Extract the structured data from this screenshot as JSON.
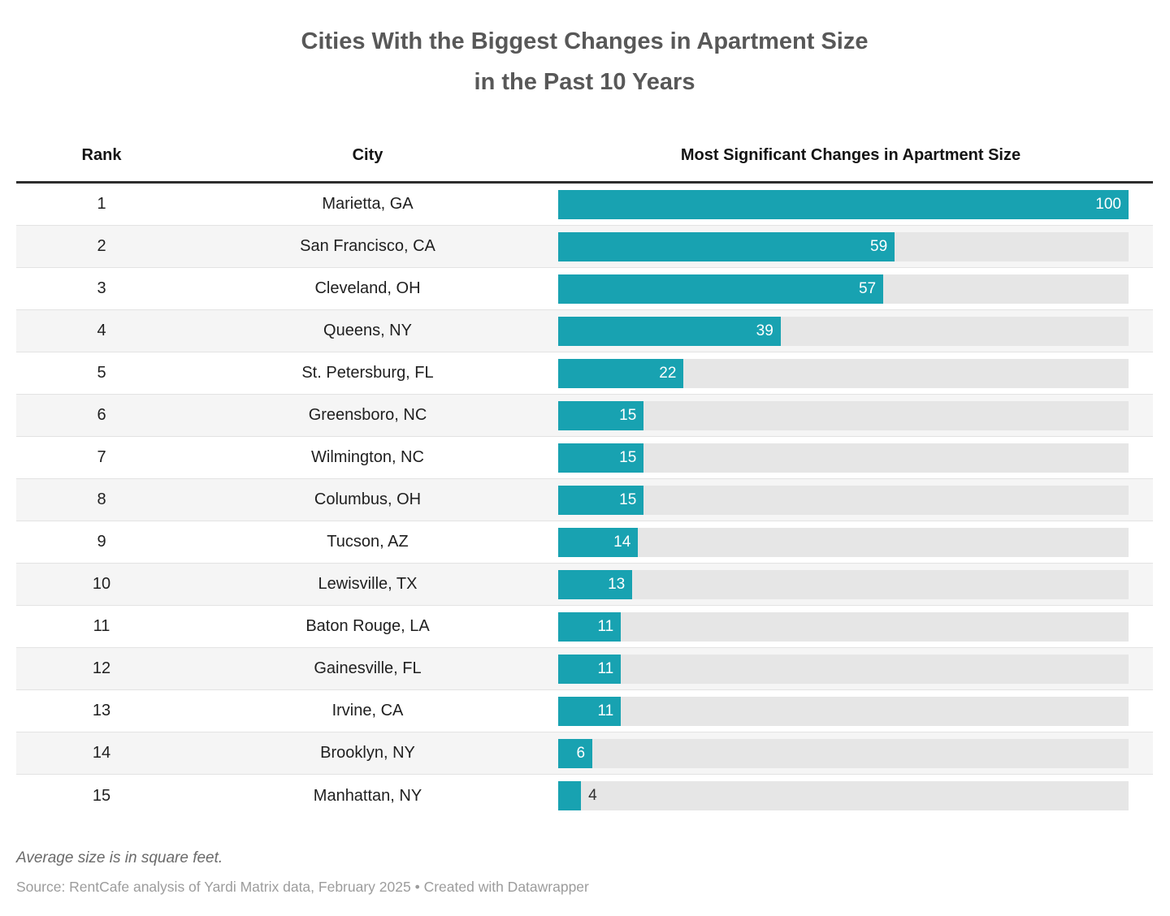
{
  "title": {
    "line1": "Cities With the Biggest Changes in Apartment Size",
    "line2": "in the Past 10 Years"
  },
  "chart_data": {
    "type": "bar",
    "orientation": "horizontal",
    "title": "Cities With the Biggest Changes in Apartment Size in the Past 10 Years",
    "column_headers": [
      "Rank",
      "City",
      "Most Significant Changes in Apartment Size"
    ],
    "ranks": [
      1,
      2,
      3,
      4,
      5,
      6,
      7,
      8,
      9,
      10,
      11,
      12,
      13,
      14,
      15
    ],
    "categories": [
      "Marietta, GA",
      "San Francisco, CA",
      "Cleveland, OH",
      "Queens, NY",
      "St. Petersburg, FL",
      "Greensboro, NC",
      "Wilmington, NC",
      "Columbus, OH",
      "Tucson, AZ",
      "Lewisville, TX",
      "Baton Rouge, LA",
      "Gainesville, FL",
      "Irvine, CA",
      "Brooklyn, NY",
      "Manhattan, NY"
    ],
    "values": [
      100,
      59,
      57,
      39,
      22,
      15,
      15,
      15,
      14,
      13,
      11,
      11,
      11,
      6,
      4
    ],
    "xlim": [
      0,
      100
    ],
    "grid": "off",
    "legend": "none",
    "bar_color": "#18a2b1",
    "track_color": "#e6e6e6",
    "value_label_inside_color": "#ffffff",
    "value_label_outside_color": "#2f2f2f",
    "value_label_outside_threshold": 5
  },
  "footer": {
    "note": "Average size is in square feet.",
    "source_text": "Source: RentCafe analysis of Yardi Matrix data, February 2025",
    "separator": " • ",
    "attribution": "Created with Datawrapper"
  }
}
